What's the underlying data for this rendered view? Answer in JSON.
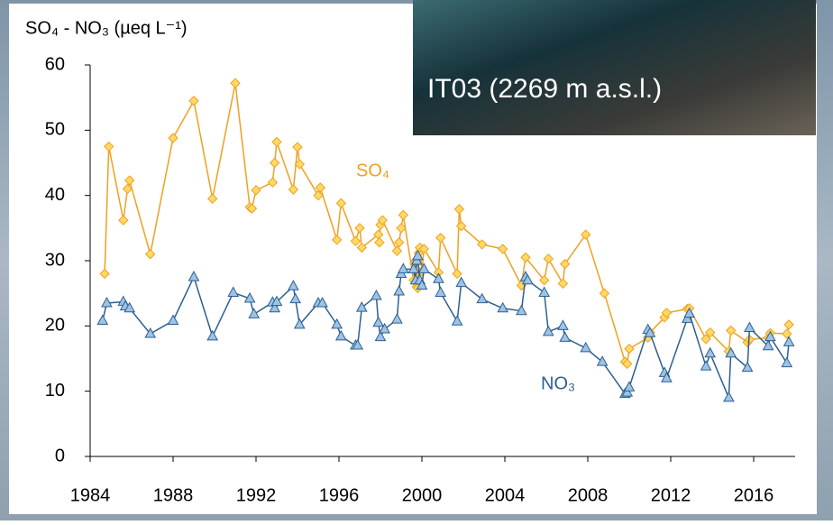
{
  "chart_data": {
    "type": "line",
    "y_label": "SO₄ - NO₃ (µeq L⁻¹)",
    "annotation": "IT03 (2269 m a.s.l.)",
    "xlim": [
      1984,
      2018
    ],
    "xticks": [
      1984,
      1988,
      1992,
      1996,
      2000,
      2004,
      2008,
      2012,
      2016
    ],
    "ylim": [
      0,
      60
    ],
    "yticks": [
      0,
      10,
      20,
      30,
      40,
      50,
      60
    ],
    "series": [
      {
        "name": "SO₄",
        "color": "#f0a020",
        "marker": "diamond",
        "x": [
          1984.7,
          1984.9,
          1985.6,
          1985.8,
          1985.9,
          1986.9,
          1988.0,
          1989.0,
          1989.9,
          1991.0,
          1991.7,
          1991.8,
          1992.0,
          1992.8,
          1992.9,
          1993.0,
          1993.8,
          1994.0,
          1994.1,
          1995.0,
          1995.1,
          1995.9,
          1996.1,
          1996.8,
          1997.0,
          1997.1,
          1997.9,
          1997.95,
          1998.0,
          1998.1,
          1998.8,
          1998.9,
          1999.0,
          1999.1,
          1999.6,
          1999.65,
          1999.7,
          1999.75,
          1999.8,
          1999.85,
          1999.9,
          2000.0,
          2000.1,
          2000.8,
          2000.9,
          2001.7,
          2001.8,
          2001.9,
          2002.9,
          2003.9,
          2004.8,
          2005.0,
          2005.9,
          2006.1,
          2006.8,
          2006.9,
          2007.9,
          2008.8,
          2009.8,
          2009.9,
          2010.0,
          2010.9,
          2011.0,
          2011.7,
          2011.8,
          2012.8,
          2012.9,
          2013.7,
          2013.9,
          2014.8,
          2014.9,
          2015.7,
          2015.8,
          2016.7,
          2016.8,
          2017.6,
          2017.7
        ],
        "values": [
          28,
          47.5,
          36.2,
          41,
          42.3,
          31,
          48.8,
          54.5,
          39.5,
          57.2,
          38.2,
          38,
          40.8,
          42,
          45,
          48.2,
          40.9,
          47.4,
          44.8,
          40,
          41.2,
          33.2,
          38.8,
          33,
          35,
          32,
          34,
          32.8,
          35.5,
          36.2,
          31.5,
          32.8,
          35,
          37,
          27,
          29.5,
          30,
          26,
          25.8,
          31.2,
          32,
          28.4,
          31.8,
          28.2,
          33.5,
          28,
          37.9,
          35.3,
          32.5,
          31.8,
          26.2,
          30.5,
          27,
          30.3,
          26.5,
          29.5,
          34,
          25,
          14.5,
          14.2,
          16.5,
          18.2,
          19,
          21.3,
          22,
          22.6,
          22.7,
          18,
          19,
          16.1,
          19.3,
          17.5,
          17.9,
          18.2,
          18.9,
          18.8,
          20.2
        ]
      },
      {
        "name": "NO₃",
        "color": "#2e5f8e",
        "marker": "triangle",
        "x": [
          1984.6,
          1984.8,
          1985.6,
          1985.7,
          1985.9,
          1986.9,
          1988.0,
          1989.0,
          1989.9,
          1990.9,
          1991.7,
          1991.9,
          1992.8,
          1992.9,
          1993.0,
          1993.8,
          1993.9,
          1994.1,
          1995.0,
          1995.2,
          1995.9,
          1996.1,
          1996.8,
          1996.9,
          1997.1,
          1997.8,
          1997.9,
          1998.0,
          1998.2,
          1998.8,
          1998.9,
          1999.0,
          1999.1,
          1999.6,
          1999.7,
          1999.75,
          1999.8,
          1999.9,
          2000.0,
          2000.1,
          2000.8,
          2000.9,
          2001.7,
          2001.9,
          2002.9,
          2003.9,
          2004.8,
          2005.0,
          2005.1,
          2005.9,
          2006.1,
          2006.8,
          2006.9,
          2007.9,
          2008.7,
          2009.8,
          2009.9,
          2010.0,
          2010.9,
          2011.0,
          2011.7,
          2011.8,
          2012.8,
          2012.9,
          2013.7,
          2013.9,
          2014.8,
          2014.9,
          2015.7,
          2015.8,
          2016.7,
          2016.8,
          2017.6,
          2017.7
        ],
        "values": [
          20.8,
          23.5,
          23.7,
          23,
          22.7,
          18.8,
          20.8,
          27.5,
          18.4,
          25.1,
          24.2,
          21.8,
          23.6,
          22.7,
          23.7,
          26.1,
          24.1,
          20.2,
          23.5,
          23.5,
          20.2,
          18.4,
          17,
          17,
          22.8,
          24.6,
          20.5,
          18.3,
          19.5,
          21,
          25.3,
          28,
          28.7,
          28.7,
          27,
          30,
          30.7,
          27,
          26.2,
          28.7,
          27.2,
          25.1,
          20.7,
          26.6,
          24.1,
          22.7,
          22.3,
          27.5,
          27,
          25.1,
          19.1,
          20,
          18.2,
          16.6,
          14.5,
          9.6,
          9.8,
          10.6,
          19.4,
          18.9,
          12.8,
          12,
          21.1,
          21.9,
          13.8,
          15.8,
          9,
          15.8,
          13.6,
          19.7,
          16.9,
          18.3,
          14.3,
          17.5
        ]
      }
    ]
  }
}
